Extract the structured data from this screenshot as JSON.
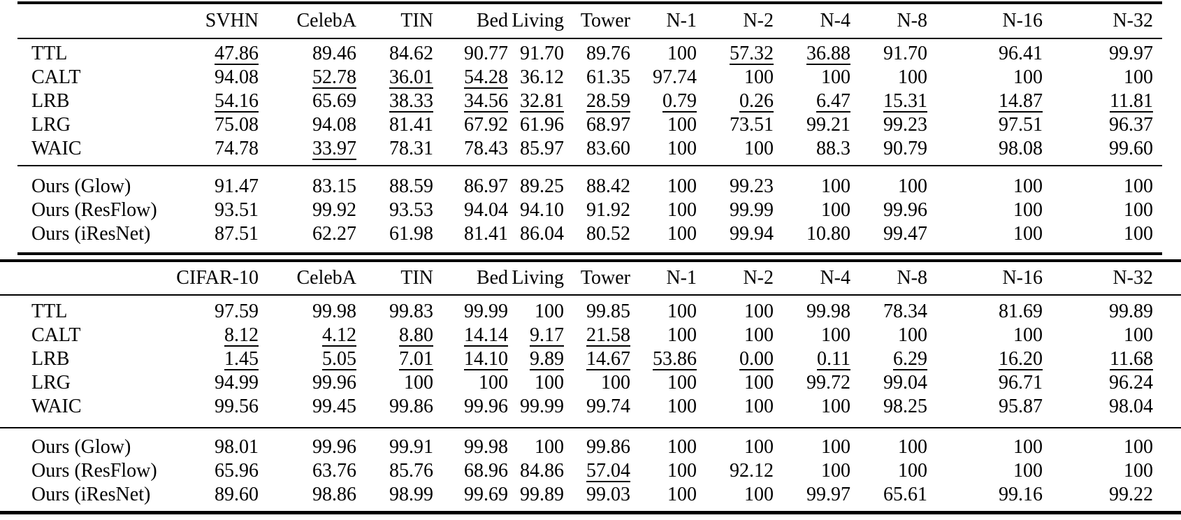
{
  "meta": {
    "background_color": "#ffffff",
    "text_color": "#000000",
    "rule_color": "#000000"
  },
  "tables": [
    {
      "name": "svhn-in-distribution-results",
      "columns": [
        "SVHN",
        "CelebA",
        "TIN",
        "Bed",
        "Living",
        "Tower",
        "N-1",
        "N-2",
        "N-4",
        "N-8",
        "N-16",
        "N-32"
      ],
      "baseline_rows": [
        {
          "label": "TTL",
          "values": [
            "47.86",
            "89.46",
            "84.62",
            "90.77",
            "91.70",
            "89.76",
            "100",
            "57.32",
            "36.88",
            "91.70",
            "96.41",
            "99.97"
          ],
          "underline": [
            0,
            7,
            8
          ]
        },
        {
          "label": "CALT",
          "values": [
            "94.08",
            "52.78",
            "36.01",
            "54.28",
            "36.12",
            "61.35",
            "97.74",
            "100",
            "100",
            "100",
            "100",
            "100"
          ],
          "underline": [
            1,
            2,
            3
          ]
        },
        {
          "label": "LRB",
          "values": [
            "54.16",
            "65.69",
            "38.33",
            "34.56",
            "32.81",
            "28.59",
            "0.79",
            "0.26",
            "6.47",
            "15.31",
            "14.87",
            "11.81"
          ],
          "underline": [
            0,
            2,
            3,
            4,
            5,
            6,
            7,
            8,
            9,
            10,
            11
          ]
        },
        {
          "label": "LRG",
          "values": [
            "75.08",
            "94.08",
            "81.41",
            "67.92",
            "61.96",
            "68.97",
            "100",
            "73.51",
            "99.21",
            "99.23",
            "97.51",
            "96.37"
          ],
          "underline": []
        },
        {
          "label": "WAIC",
          "values": [
            "74.78",
            "33.97",
            "78.31",
            "78.43",
            "85.97",
            "83.60",
            "100",
            "100",
            "88.3",
            "90.79",
            "98.08",
            "99.60"
          ],
          "underline": [
            1
          ]
        }
      ],
      "ours_rows": [
        {
          "label": "Ours (Glow)",
          "values": [
            "91.47",
            "83.15",
            "88.59",
            "86.97",
            "89.25",
            "88.42",
            "100",
            "99.23",
            "100",
            "100",
            "100",
            "100"
          ],
          "underline": []
        },
        {
          "label": "Ours (ResFlow)",
          "values": [
            "93.51",
            "99.92",
            "93.53",
            "94.04",
            "94.10",
            "91.92",
            "100",
            "99.99",
            "100",
            "99.96",
            "100",
            "100"
          ],
          "underline": []
        },
        {
          "label": "Ours (iResNet)",
          "values": [
            "87.51",
            "62.27",
            "61.98",
            "81.41",
            "86.04",
            "80.52",
            "100",
            "99.94",
            "10.80",
            "99.47",
            "100",
            "100"
          ],
          "underline": []
        }
      ]
    },
    {
      "name": "cifar10-in-distribution-results",
      "columns": [
        "CIFAR-10",
        "CelebA",
        "TIN",
        "Bed",
        "Living",
        "Tower",
        "N-1",
        "N-2",
        "N-4",
        "N-8",
        "N-16",
        "N-32"
      ],
      "baseline_rows": [
        {
          "label": "TTL",
          "values": [
            "97.59",
            "99.98",
            "99.83",
            "99.99",
            "100",
            "99.85",
            "100",
            "100",
            "99.98",
            "78.34",
            "81.69",
            "99.89"
          ],
          "underline": []
        },
        {
          "label": "CALT",
          "values": [
            "8.12",
            "4.12",
            "8.80",
            "14.14",
            "9.17",
            "21.58",
            "100",
            "100",
            "100",
            "100",
            "100",
            "100"
          ],
          "underline": [
            0,
            1,
            2,
            3,
            4,
            5
          ]
        },
        {
          "label": "LRB",
          "values": [
            "1.45",
            "5.05",
            "7.01",
            "14.10",
            "9.89",
            "14.67",
            "53.86",
            "0.00",
            "0.11",
            "6.29",
            "16.20",
            "11.68"
          ],
          "underline": [
            0,
            1,
            2,
            3,
            4,
            5,
            6,
            7,
            8,
            9,
            10,
            11
          ]
        },
        {
          "label": "LRG",
          "values": [
            "94.99",
            "99.96",
            "100",
            "100",
            "100",
            "100",
            "100",
            "100",
            "99.72",
            "99.04",
            "96.71",
            "96.24"
          ],
          "underline": []
        },
        {
          "label": "WAIC",
          "values": [
            "99.56",
            "99.45",
            "99.86",
            "99.96",
            "99.99",
            "99.74",
            "100",
            "100",
            "100",
            "98.25",
            "95.87",
            "98.04"
          ],
          "underline": []
        }
      ],
      "ours_rows": [
        {
          "label": "Ours (Glow)",
          "values": [
            "98.01",
            "99.96",
            "99.91",
            "99.98",
            "100",
            "99.86",
            "100",
            "100",
            "100",
            "100",
            "100",
            "100"
          ],
          "underline": []
        },
        {
          "label": "Ours (ResFlow)",
          "values": [
            "65.96",
            "63.76",
            "85.76",
            "68.96",
            "84.86",
            "57.04",
            "100",
            "92.12",
            "100",
            "100",
            "100",
            "100"
          ],
          "underline": [
            5
          ]
        },
        {
          "label": "Ours (iResNet)",
          "values": [
            "89.60",
            "98.86",
            "98.99",
            "99.69",
            "99.89",
            "99.03",
            "100",
            "100",
            "99.97",
            "65.61",
            "99.16",
            "99.22"
          ],
          "underline": []
        }
      ]
    }
  ]
}
